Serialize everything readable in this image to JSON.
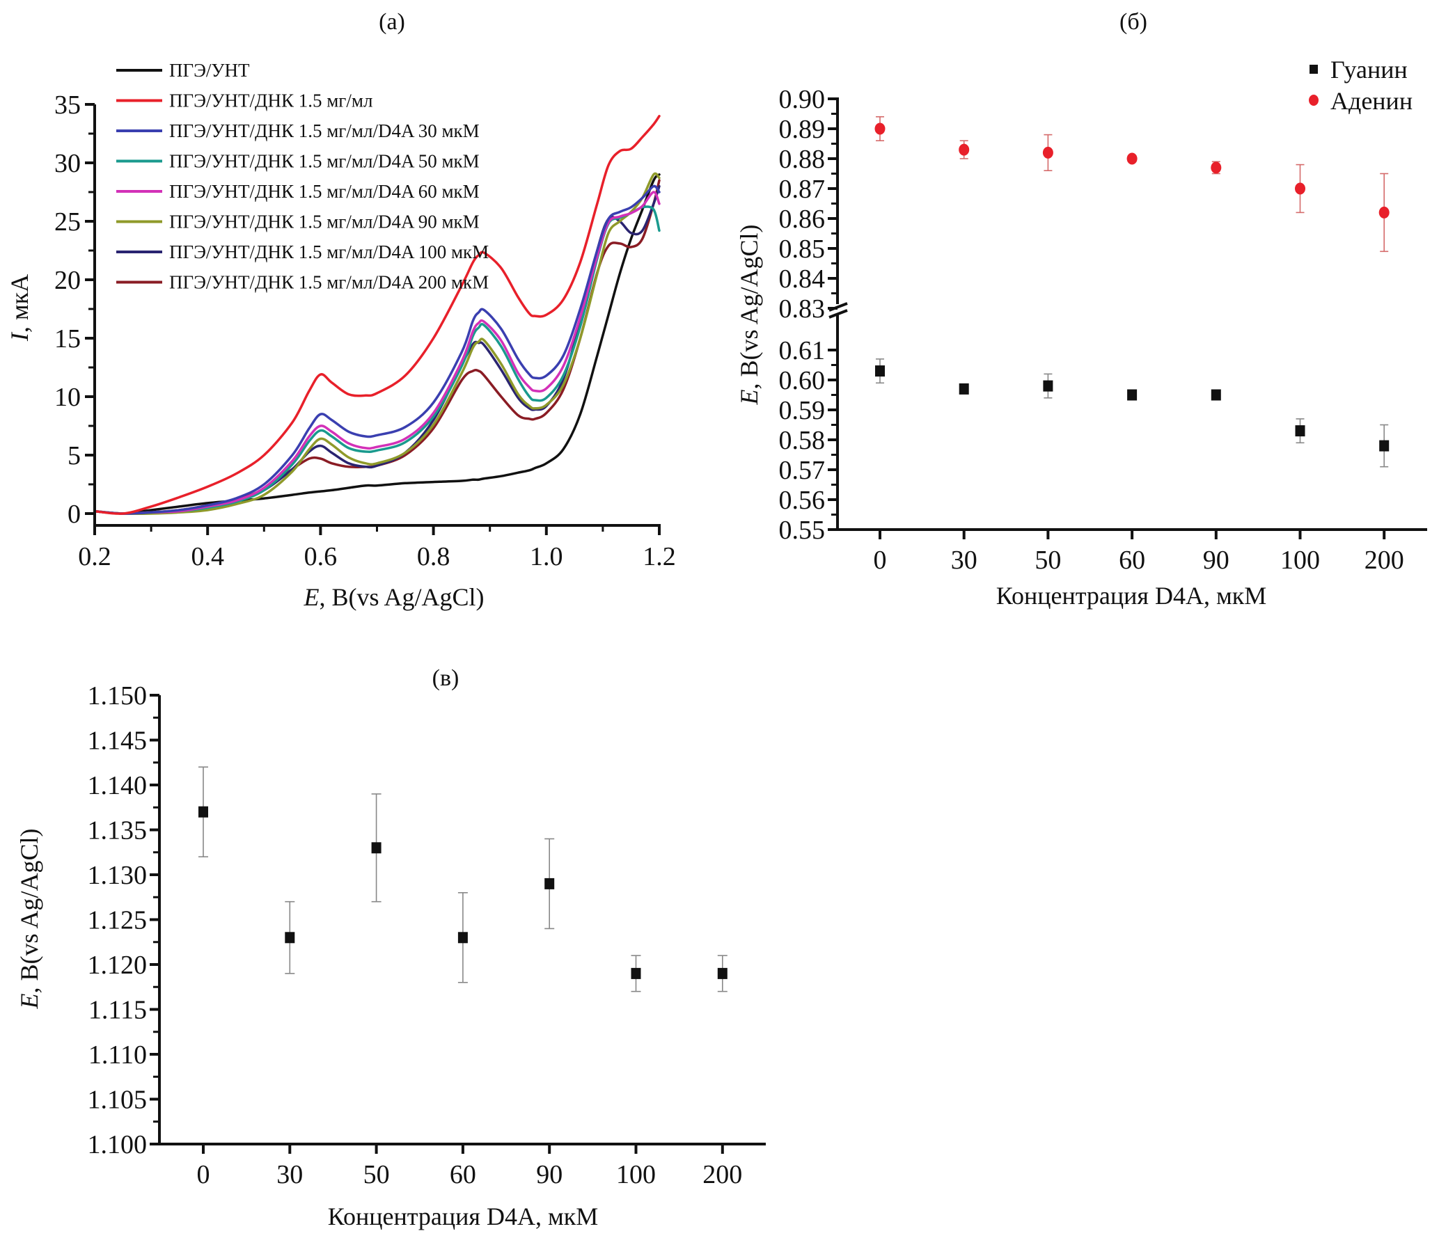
{
  "colors": {
    "black": "#111111",
    "red": "#e8202a",
    "blue": "#3a3fb0",
    "teal": "#1a9a8e",
    "magenta": "#d331b8",
    "olive": "#8f9a2a",
    "navy": "#2a2470",
    "darkred": "#8a1c24",
    "adenine": "#e8202a",
    "guanine": "#111111",
    "errgray": "#888888",
    "errred": "#d56a6a"
  },
  "chart_data": [
    {
      "id": "a",
      "type": "line",
      "panel_label": "(a)",
      "xlabel_italic": "E",
      "xlabel_rest": ", В(vs Ag/AgCl)",
      "ylabel_italic": "I",
      "ylabel_rest": ", мкА",
      "xlim": [
        0.2,
        1.2
      ],
      "ylim": [
        -1,
        35
      ],
      "xticks": [
        0.2,
        0.4,
        0.6,
        0.8,
        1.0,
        1.2
      ],
      "xtick_labels": [
        "0.2",
        "0.4",
        "0.6",
        "0.8",
        "1.0",
        "1.2"
      ],
      "yticks": [
        0,
        5,
        10,
        15,
        20,
        25,
        30,
        35
      ],
      "ytick_labels": [
        "0",
        "5",
        "10",
        "15",
        "20",
        "25",
        "30",
        "35"
      ],
      "legend_position": "top-left",
      "x": [
        0.2,
        0.25,
        0.3,
        0.35,
        0.4,
        0.45,
        0.5,
        0.55,
        0.58,
        0.6,
        0.62,
        0.65,
        0.68,
        0.7,
        0.75,
        0.8,
        0.85,
        0.87,
        0.88,
        0.89,
        0.92,
        0.95,
        0.97,
        0.98,
        1.0,
        1.03,
        1.06,
        1.09,
        1.11,
        1.13,
        1.15,
        1.17,
        1.19,
        1.2
      ],
      "series": [
        {
          "name": "ПГЭ/УНТ",
          "color_key": "black",
          "values": [
            0.2,
            0.0,
            0.3,
            0.6,
            0.9,
            1.1,
            1.3,
            1.6,
            1.8,
            1.9,
            2.0,
            2.2,
            2.4,
            2.4,
            2.6,
            2.7,
            2.8,
            2.9,
            2.9,
            3.0,
            3.2,
            3.5,
            3.7,
            3.9,
            4.3,
            5.5,
            8.5,
            13.5,
            17.0,
            20.5,
            23.5,
            26.0,
            28.5,
            29.0
          ]
        },
        {
          "name": "ПГЭ/УНТ/ДНК 1.5 мг/мл",
          "color_key": "red",
          "values": [
            0.2,
            0.0,
            0.6,
            1.4,
            2.3,
            3.4,
            5.0,
            7.8,
            10.5,
            11.9,
            11.2,
            10.2,
            10.1,
            10.3,
            11.8,
            15.0,
            19.5,
            21.5,
            22.1,
            22.3,
            21.0,
            18.5,
            17.1,
            16.9,
            17.0,
            18.3,
            21.5,
            26.5,
            29.8,
            31.0,
            31.2,
            32.2,
            33.3,
            34.0
          ]
        },
        {
          "name": "ПГЭ/УНТ/ДНК 1.5 мг/мл/D4A 30 мкМ",
          "color_key": "blue",
          "values": [
            0.2,
            0.0,
            0.1,
            0.3,
            0.7,
            1.3,
            2.5,
            5.0,
            7.3,
            8.5,
            8.0,
            7.0,
            6.6,
            6.7,
            7.4,
            9.5,
            13.8,
            16.5,
            17.2,
            17.4,
            15.8,
            13.2,
            11.9,
            11.6,
            11.8,
            13.5,
            17.5,
            22.5,
            25.2,
            25.8,
            26.2,
            27.0,
            28.0,
            27.5
          ]
        },
        {
          "name": "ПГЭ/УНТ/ДНК 1.5 мг/мл/D4A 50 мкМ",
          "color_key": "teal",
          "values": [
            0.2,
            0.0,
            0.1,
            0.2,
            0.5,
            1.0,
            2.0,
            4.2,
            6.2,
            7.1,
            6.6,
            5.6,
            5.3,
            5.4,
            6.1,
            8.3,
            12.6,
            15.2,
            15.9,
            16.1,
            14.3,
            11.5,
            10.0,
            9.7,
            9.9,
            11.8,
            16.0,
            21.8,
            24.8,
            25.3,
            25.7,
            26.2,
            26.0,
            24.2
          ]
        },
        {
          "name": "ПГЭ/УНТ/ДНК 1.5 мг/мл/D4A 60 мкМ",
          "color_key": "magenta",
          "values": [
            0.2,
            0.0,
            0.1,
            0.2,
            0.6,
            1.1,
            2.2,
            4.5,
            6.6,
            7.5,
            7.0,
            6.0,
            5.6,
            5.7,
            6.4,
            8.6,
            13.0,
            15.6,
            16.3,
            16.4,
            14.8,
            12.0,
            10.8,
            10.5,
            10.7,
            12.6,
            16.8,
            22.0,
            24.9,
            25.4,
            25.7,
            26.3,
            27.5,
            26.5
          ]
        },
        {
          "name": "ПГЭ/УНТ/ДНК 1.5 мг/мл/D4A 90 мкМ",
          "color_key": "olive",
          "values": [
            0.2,
            0.0,
            0.0,
            0.1,
            0.3,
            0.8,
            1.6,
            3.6,
            5.5,
            6.4,
            5.9,
            4.8,
            4.3,
            4.3,
            5.2,
            7.6,
            12.0,
            14.2,
            14.7,
            14.8,
            12.8,
            10.2,
            9.2,
            9.0,
            9.3,
            11.0,
            15.0,
            20.5,
            24.0,
            25.0,
            25.8,
            27.0,
            29.0,
            28.7
          ]
        },
        {
          "name": "ПГЭ/УНТ/ДНК 1.5 мг/мл/D4A 100 мкМ",
          "color_key": "navy",
          "values": [
            0.2,
            0.0,
            0.1,
            0.2,
            0.6,
            1.1,
            2.0,
            3.8,
            5.3,
            5.8,
            5.2,
            4.3,
            4.0,
            4.1,
            5.2,
            8.0,
            12.7,
            14.5,
            14.6,
            14.4,
            12.3,
            9.9,
            9.0,
            8.9,
            9.2,
            11.5,
            16.5,
            22.5,
            25.2,
            25.0,
            24.0,
            24.2,
            26.5,
            28.0
          ]
        },
        {
          "name": "ПГЭ/УНТ/ДНК 1.5 мг/мл/D4A 200 мкМ",
          "color_key": "darkred",
          "values": [
            0.2,
            0.0,
            0.1,
            0.3,
            0.7,
            1.2,
            2.1,
            3.8,
            4.7,
            4.7,
            4.3,
            4.0,
            4.0,
            4.1,
            5.0,
            7.3,
            11.4,
            12.2,
            12.2,
            11.8,
            10.0,
            8.4,
            8.1,
            8.1,
            8.6,
            10.6,
            15.0,
            20.6,
            22.9,
            23.1,
            22.8,
            23.5,
            26.5,
            28.5
          ]
        }
      ]
    },
    {
      "id": "b",
      "type": "scatter",
      "panel_label": "(б)",
      "xlabel": "Концентрация D4A, мкМ",
      "ylabel_italic": "E",
      "ylabel_rest": ", В(vs Ag/AgCl)",
      "categories": [
        "0",
        "30",
        "50",
        "60",
        "90",
        "100",
        "200"
      ],
      "y_segments": [
        [
          0.55,
          0.61
        ],
        [
          0.83,
          0.9
        ]
      ],
      "y_break": [
        0.61,
        0.83
      ],
      "yticks_lower": [
        0.55,
        0.56,
        0.57,
        0.58,
        0.59,
        0.6,
        0.61
      ],
      "ytick_labels_lower": [
        "0.55",
        "0.56",
        "0.57",
        "0.58",
        "0.59",
        "0.60",
        "0.61"
      ],
      "yticks_upper": [
        0.83,
        0.84,
        0.85,
        0.86,
        0.87,
        0.88,
        0.89,
        0.9
      ],
      "ytick_labels_upper": [
        "0.83",
        "0.84",
        "0.85",
        "0.86",
        "0.87",
        "0.88",
        "0.89",
        "0.90"
      ],
      "legend_position": "top-right",
      "series": [
        {
          "name": "Гуанин",
          "marker": "square",
          "color_key": "guanine",
          "values": [
            0.603,
            0.597,
            0.598,
            0.595,
            0.595,
            0.583,
            0.578
          ],
          "err_low": [
            0.599,
            0.596,
            0.594,
            0.594,
            0.594,
            0.579,
            0.571
          ],
          "err_high": [
            0.607,
            0.598,
            0.602,
            0.596,
            0.596,
            0.587,
            0.585
          ]
        },
        {
          "name": "Аденин",
          "marker": "circle",
          "color_key": "adenine",
          "values": [
            0.89,
            0.883,
            0.882,
            0.88,
            0.877,
            0.87,
            0.862
          ],
          "err_low": [
            0.886,
            0.88,
            0.876,
            0.879,
            0.875,
            0.862,
            0.849
          ],
          "err_high": [
            0.894,
            0.886,
            0.888,
            0.881,
            0.879,
            0.878,
            0.875
          ]
        }
      ]
    },
    {
      "id": "c",
      "type": "scatter",
      "panel_label": "(в)",
      "xlabel": "Концентрация D4A, мкМ",
      "ylabel_italic": "E",
      "ylabel_rest": ", В(vs Ag/AgCl)",
      "categories": [
        "0",
        "30",
        "50",
        "60",
        "90",
        "100",
        "200"
      ],
      "ylim": [
        1.1,
        1.15
      ],
      "yticks": [
        1.1,
        1.105,
        1.11,
        1.115,
        1.12,
        1.125,
        1.13,
        1.135,
        1.14,
        1.145,
        1.15
      ],
      "ytick_labels": [
        "1.100",
        "1.105",
        "1.110",
        "1.115",
        "1.120",
        "1.125",
        "1.130",
        "1.135",
        "1.140",
        "1.145",
        "1.150"
      ],
      "series": [
        {
          "name": "E",
          "marker": "square",
          "color_key": "guanine",
          "values": [
            1.137,
            1.123,
            1.133,
            1.123,
            1.129,
            1.119,
            1.119
          ],
          "err_low": [
            1.132,
            1.119,
            1.127,
            1.118,
            1.124,
            1.117,
            1.117
          ],
          "err_high": [
            1.142,
            1.127,
            1.139,
            1.128,
            1.134,
            1.121,
            1.121
          ]
        }
      ]
    }
  ]
}
